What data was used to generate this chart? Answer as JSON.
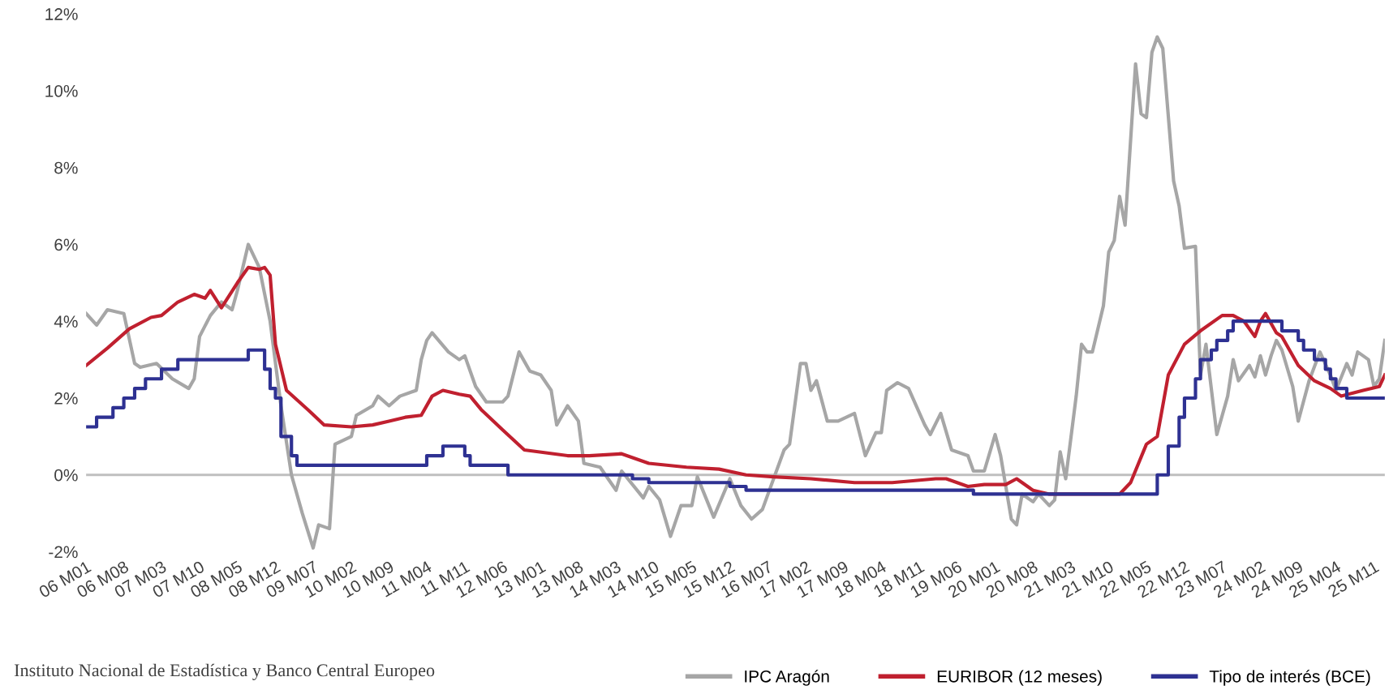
{
  "chart_data": {
    "type": "line",
    "ylim": [
      -2,
      12
    ],
    "yticks": [
      {
        "value": -2,
        "label": "-2%"
      },
      {
        "value": 0,
        "label": "0%"
      },
      {
        "value": 2,
        "label": "2%"
      },
      {
        "value": 4,
        "label": "4%"
      },
      {
        "value": 6,
        "label": "6%"
      },
      {
        "value": 8,
        "label": "8%"
      },
      {
        "value": 10,
        "label": "10%"
      },
      {
        "value": 12,
        "label": "12%"
      }
    ],
    "xlim": [
      "2006-01",
      "2026-01"
    ],
    "xticks": [
      {
        "value": "2006-01",
        "label": "06 M01"
      },
      {
        "value": "2006-08",
        "label": "06 M08"
      },
      {
        "value": "2007-03",
        "label": "07 M03"
      },
      {
        "value": "2007-10",
        "label": "07 M10"
      },
      {
        "value": "2008-05",
        "label": "08 M05"
      },
      {
        "value": "2008-12",
        "label": "08 M12"
      },
      {
        "value": "2009-07",
        "label": "09 M07"
      },
      {
        "value": "2010-02",
        "label": "10 M02"
      },
      {
        "value": "2010-09",
        "label": "10 M09"
      },
      {
        "value": "2011-04",
        "label": "11 M04"
      },
      {
        "value": "2011-11",
        "label": "11 M11"
      },
      {
        "value": "2012-06",
        "label": "12 M06"
      },
      {
        "value": "2013-01",
        "label": "13 M01"
      },
      {
        "value": "2013-08",
        "label": "13 M08"
      },
      {
        "value": "2014-03",
        "label": "14 M03"
      },
      {
        "value": "2014-10",
        "label": "14 M10"
      },
      {
        "value": "2015-05",
        "label": "15 M05"
      },
      {
        "value": "2015-12",
        "label": "15 M12"
      },
      {
        "value": "2016-07",
        "label": "16 M07"
      },
      {
        "value": "2017-02",
        "label": "17 M02"
      },
      {
        "value": "2017-09",
        "label": "17 M09"
      },
      {
        "value": "2018-04",
        "label": "18 M04"
      },
      {
        "value": "2018-11",
        "label": "18 M11"
      },
      {
        "value": "2019-06",
        "label": "19 M06"
      },
      {
        "value": "2020-01",
        "label": "20 M01"
      },
      {
        "value": "2020-08",
        "label": "20 M08"
      },
      {
        "value": "2021-03",
        "label": "21 M03"
      },
      {
        "value": "2021-10",
        "label": "21 M10"
      },
      {
        "value": "2022-05",
        "label": "22 M05"
      },
      {
        "value": "2022-12",
        "label": "22 M12"
      },
      {
        "value": "2023-07",
        "label": "23 M07"
      },
      {
        "value": "2024-02",
        "label": "24 M02"
      },
      {
        "value": "2024-09",
        "label": "24 M09"
      },
      {
        "value": "2025-04",
        "label": "25 M04"
      },
      {
        "value": "2025-11",
        "label": "25 M11"
      }
    ],
    "grid": false,
    "legend": "bottom right",
    "marker": "none",
    "line_style": "solid",
    "ref_lines": [
      {
        "axis": "y",
        "value": 0,
        "label": null,
        "color": "#bfbfbf"
      }
    ],
    "annotations": [
      "Instituto Nacional de Estadística y Banco Central Europeo"
    ],
    "series": [
      {
        "name": "IPC Aragón",
        "color": "#a6a6a6",
        "x": [
          "2006-01",
          "2006-03",
          "2006-05",
          "2006-08",
          "2006-10",
          "2006-11",
          "2007-02",
          "2007-05",
          "2007-08",
          "2007-09",
          "2007-10",
          "2007-12",
          "2008-02",
          "2008-04",
          "2008-05",
          "2008-07",
          "2008-09",
          "2008-11",
          "2009-01",
          "2009-03",
          "2009-05",
          "2009-07",
          "2009-08",
          "2009-10",
          "2009-11",
          "2010-02",
          "2010-03",
          "2010-06",
          "2010-07",
          "2010-09",
          "2010-11",
          "2011-02",
          "2011-03",
          "2011-04",
          "2011-05",
          "2011-08",
          "2011-10",
          "2011-11",
          "2012-01",
          "2012-03",
          "2012-06",
          "2012-07",
          "2012-09",
          "2012-11",
          "2013-01",
          "2013-03",
          "2013-04",
          "2013-06",
          "2013-08",
          "2013-09",
          "2013-12",
          "2014-03",
          "2014-04",
          "2014-08",
          "2014-09",
          "2014-11",
          "2015-01",
          "2015-03",
          "2015-05",
          "2015-06",
          "2015-09",
          "2015-12",
          "2016-02",
          "2016-04",
          "2016-06",
          "2016-10",
          "2016-11",
          "2017-01",
          "2017-02",
          "2017-03",
          "2017-04",
          "2017-06",
          "2017-08",
          "2017-11",
          "2018-01",
          "2018-03",
          "2018-04",
          "2018-05",
          "2018-07",
          "2018-09",
          "2018-12",
          "2019-01",
          "2019-03",
          "2019-05",
          "2019-08",
          "2019-09",
          "2019-11",
          "2020-01",
          "2020-02",
          "2020-04",
          "2020-05",
          "2020-06",
          "2020-08",
          "2020-09",
          "2020-11",
          "2020-12",
          "2021-01",
          "2021-02",
          "2021-04",
          "2021-05",
          "2021-06",
          "2021-07",
          "2021-09",
          "2021-10",
          "2021-11",
          "2021-12",
          "2022-01",
          "2022-03",
          "2022-04",
          "2022-05",
          "2022-06",
          "2022-07",
          "2022-08",
          "2022-10",
          "2022-11",
          "2022-12",
          "2023-02",
          "2023-03",
          "2023-04",
          "2023-06",
          "2023-08",
          "2023-09",
          "2023-10",
          "2023-12",
          "2024-01",
          "2024-02",
          "2024-03",
          "2024-04",
          "2024-05",
          "2024-06",
          "2024-08",
          "2024-09",
          "2024-11",
          "2025-01",
          "2025-03",
          "2025-04",
          "2025-06",
          "2025-07",
          "2025-08",
          "2025-09",
          "2025-10",
          "2025-11",
          "2025-12",
          "2026-01"
        ],
        "values": [
          4.2,
          3.9,
          4.3,
          4.2,
          2.9,
          2.8,
          2.9,
          2.5,
          2.25,
          2.5,
          3.6,
          4.15,
          4.5,
          4.3,
          4.8,
          6.0,
          5.4,
          4.0,
          1.8,
          0.0,
          -1.0,
          -1.9,
          -1.3,
          -1.4,
          0.8,
          1.0,
          1.55,
          1.8,
          2.05,
          1.8,
          2.05,
          2.2,
          3.0,
          3.5,
          3.7,
          3.2,
          3.0,
          3.1,
          2.3,
          1.9,
          1.9,
          2.05,
          3.2,
          2.7,
          2.6,
          2.2,
          1.3,
          1.8,
          1.4,
          0.3,
          0.2,
          -0.4,
          0.1,
          -0.6,
          -0.3,
          -0.65,
          -1.6,
          -0.8,
          -0.8,
          -0.05,
          -1.1,
          -0.1,
          -0.8,
          -1.15,
          -0.9,
          0.65,
          0.8,
          2.9,
          2.9,
          2.2,
          2.45,
          1.4,
          1.4,
          1.6,
          0.5,
          1.1,
          1.1,
          2.2,
          2.4,
          2.25,
          1.3,
          1.05,
          1.6,
          0.65,
          0.5,
          0.1,
          0.1,
          1.05,
          0.5,
          -1.15,
          -1.3,
          -0.5,
          -0.7,
          -0.5,
          -0.8,
          -0.65,
          0.6,
          -0.1,
          2.05,
          3.4,
          3.2,
          3.2,
          4.4,
          5.8,
          6.1,
          7.25,
          6.5,
          10.7,
          9.4,
          9.3,
          11.0,
          11.4,
          11.1,
          7.65,
          7.0,
          5.9,
          5.95,
          2.6,
          3.4,
          1.05,
          2.05,
          3.0,
          2.45,
          2.85,
          2.55,
          3.1,
          2.6,
          3.1,
          3.5,
          3.25,
          2.3,
          1.4,
          2.45,
          3.2,
          2.6,
          2.2,
          2.9,
          2.6,
          3.2,
          3.1,
          3.0,
          2.3,
          2.5,
          3.5
        ]
      },
      {
        "name": "EURIBOR (12 meses)",
        "color": "#c0202f",
        "x": [
          "2006-01",
          "2006-05",
          "2006-09",
          "2007-01",
          "2007-03",
          "2007-06",
          "2007-09",
          "2007-11",
          "2007-12",
          "2008-02",
          "2008-05",
          "2008-07",
          "2008-09",
          "2008-10",
          "2008-11",
          "2008-12",
          "2009-02",
          "2009-06",
          "2009-09",
          "2010-02",
          "2010-06",
          "2010-09",
          "2010-12",
          "2011-03",
          "2011-05",
          "2011-07",
          "2011-10",
          "2011-12",
          "2012-02",
          "2012-06",
          "2012-10",
          "2013-06",
          "2013-10",
          "2014-04",
          "2014-09",
          "2015-04",
          "2015-10",
          "2016-03",
          "2016-08",
          "2017-03",
          "2017-11",
          "2018-06",
          "2019-02",
          "2019-04",
          "2019-08",
          "2019-11",
          "2020-03",
          "2020-05",
          "2020-08",
          "2020-11",
          "2021-04",
          "2021-12",
          "2022-02",
          "2022-05",
          "2022-07",
          "2022-09",
          "2022-12",
          "2023-03",
          "2023-07",
          "2023-09",
          "2023-11",
          "2024-01",
          "2024-02",
          "2024-03",
          "2024-05",
          "2024-06",
          "2024-09",
          "2024-12",
          "2025-03",
          "2025-05",
          "2025-09",
          "2025-12",
          "2026-01"
        ],
        "values": [
          2.85,
          3.3,
          3.8,
          4.1,
          4.15,
          4.5,
          4.7,
          4.6,
          4.8,
          4.35,
          5.0,
          5.4,
          5.35,
          5.4,
          5.2,
          3.4,
          2.2,
          1.7,
          1.3,
          1.25,
          1.3,
          1.4,
          1.5,
          1.55,
          2.05,
          2.2,
          2.1,
          2.05,
          1.7,
          1.17,
          0.65,
          0.5,
          0.5,
          0.55,
          0.3,
          0.2,
          0.15,
          0.0,
          -0.05,
          -0.1,
          -0.2,
          -0.2,
          -0.1,
          -0.1,
          -0.3,
          -0.25,
          -0.25,
          -0.1,
          -0.4,
          -0.5,
          -0.5,
          -0.5,
          -0.2,
          0.8,
          1.0,
          2.6,
          3.4,
          3.75,
          4.15,
          4.15,
          4.0,
          3.6,
          4.0,
          4.2,
          3.7,
          3.6,
          2.85,
          2.45,
          2.25,
          2.05,
          2.2,
          2.3,
          2.6
        ]
      },
      {
        "name": "Tipo de interés (BCE)",
        "color": "#2e3192",
        "type": "step",
        "x": [
          "2006-01",
          "2006-03",
          "2006-06",
          "2006-08",
          "2006-10",
          "2006-12",
          "2007-03",
          "2007-06",
          "2008-07",
          "2008-10",
          "2008-11",
          "2008-12",
          "2009-01",
          "2009-03",
          "2009-04",
          "2011-04",
          "2011-07",
          "2011-11",
          "2011-12",
          "2012-07",
          "2014-06",
          "2014-09",
          "2015-12",
          "2016-03",
          "2019-09",
          "2022-07",
          "2022-09",
          "2022-11",
          "2022-12",
          "2023-02",
          "2023-03",
          "2023-05",
          "2023-06",
          "2023-08",
          "2023-09",
          "2024-06",
          "2024-09",
          "2024-10",
          "2024-12",
          "2025-02",
          "2025-03",
          "2025-04",
          "2025-06",
          "2026-01"
        ],
        "values": [
          1.25,
          1.5,
          1.75,
          2.0,
          2.25,
          2.5,
          2.75,
          3.0,
          3.25,
          2.75,
          2.25,
          2.0,
          1.0,
          0.5,
          0.25,
          0.5,
          0.75,
          0.5,
          0.25,
          0.0,
          -0.1,
          -0.2,
          -0.3,
          -0.4,
          -0.5,
          0.0,
          0.75,
          1.5,
          2.0,
          2.5,
          3.0,
          3.25,
          3.5,
          3.75,
          4.0,
          3.75,
          3.5,
          3.25,
          3.0,
          2.75,
          2.5,
          2.25,
          2.0,
          2.0
        ]
      }
    ]
  }
}
